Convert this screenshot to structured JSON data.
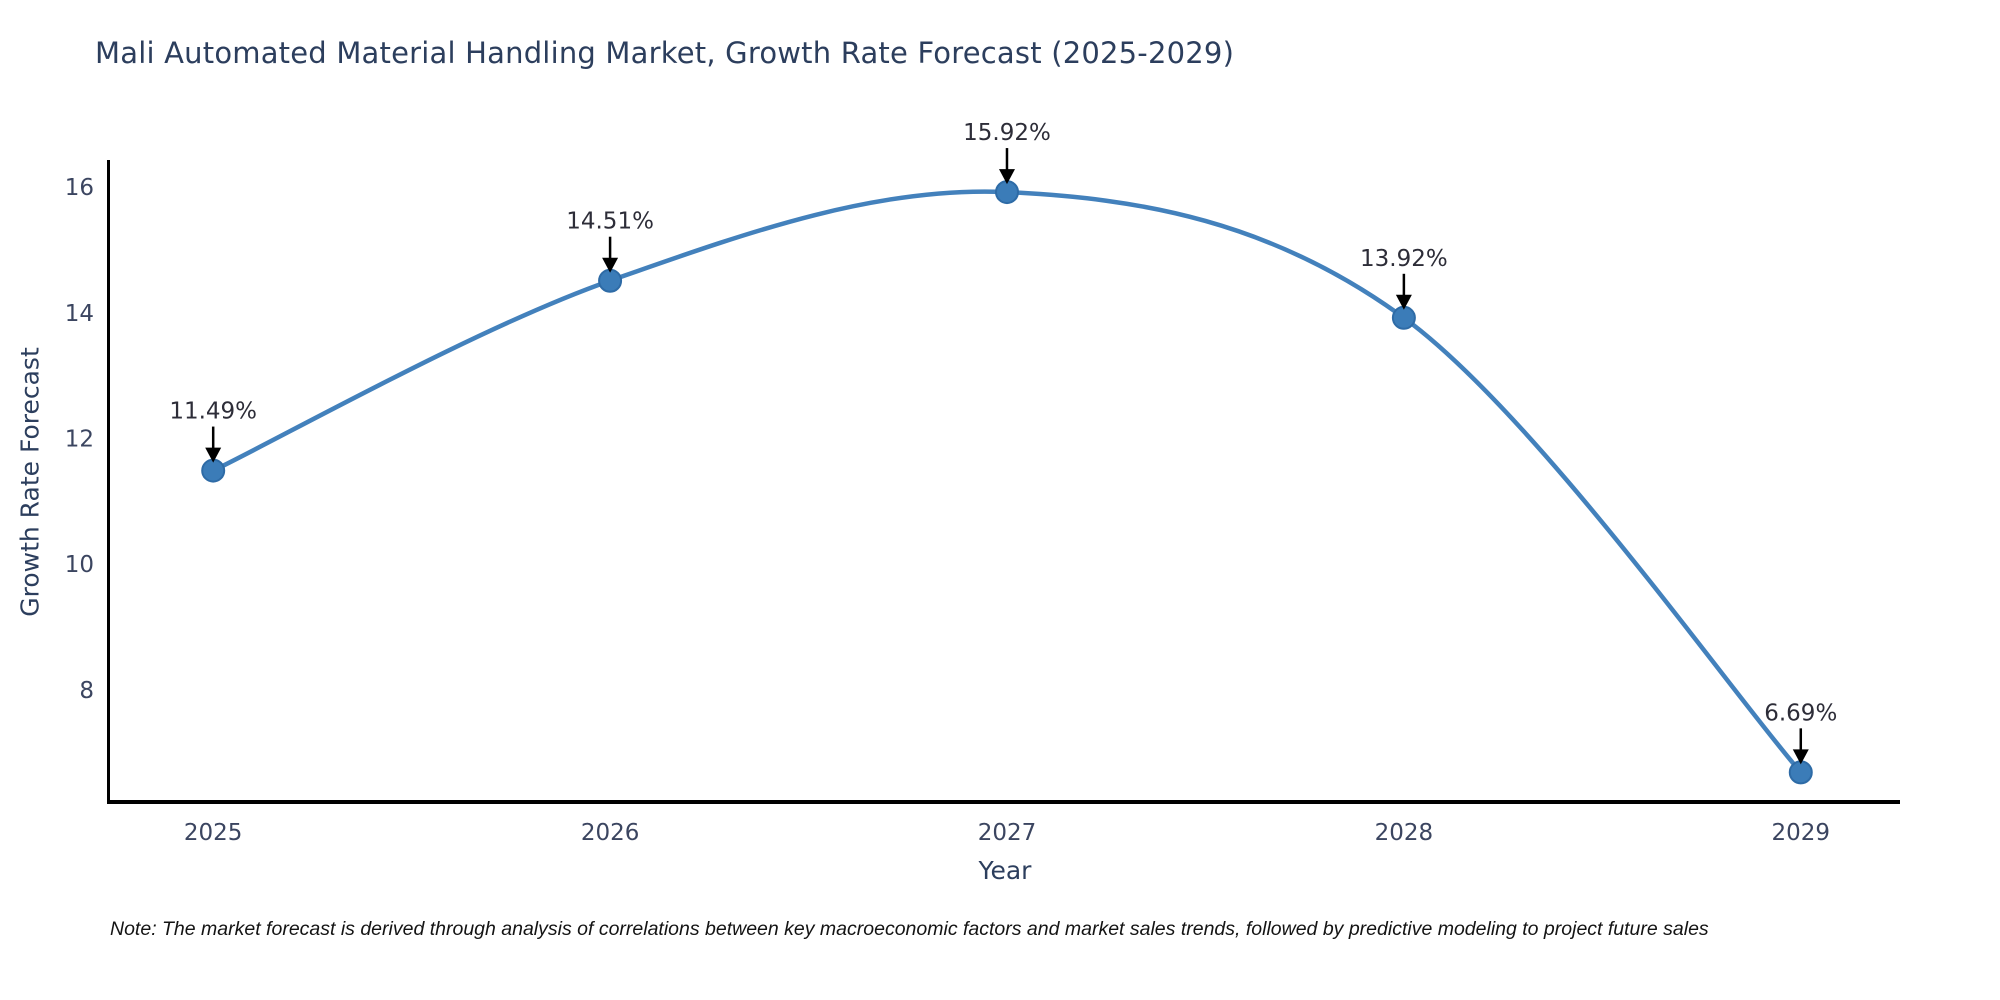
{
  "chart_data": {
    "type": "line",
    "title": "Mali Automated Material Handling Market, Growth Rate Forecast (2025-2029)",
    "xlabel": "Year",
    "ylabel": "Growth Rate Forecast",
    "x": [
      2025,
      2026,
      2027,
      2028,
      2029
    ],
    "values": [
      11.49,
      14.51,
      15.92,
      13.92,
      6.69
    ],
    "point_labels": [
      "11.49%",
      "14.51%",
      "15.92%",
      "13.92%",
      "6.69%"
    ],
    "x_tick_labels": [
      "2025",
      "2026",
      "2027",
      "2028",
      "2029"
    ],
    "y_ticks": [
      8,
      10,
      12,
      14,
      16
    ],
    "xlim": [
      2024.74,
      2029.25
    ],
    "ylim": [
      6.25,
      16.43
    ],
    "grid": false,
    "legend_position": "none",
    "smooth": true,
    "marker_shape": "circle",
    "annotation_arrow": "down-arrow",
    "colors": {
      "line": "#4381bc",
      "marker_fill": "#3b7cb8",
      "marker_edge": "#2e6ba6",
      "arrow": "#000000",
      "spine": "#000000",
      "title_text": "#2c3e5d",
      "axis_label_text": "#2c3e5d",
      "tick_text": "#3b4560",
      "annotation_text": "#2d2d38",
      "note_text": "#141414",
      "background": "#ffffff"
    }
  },
  "note": {
    "text": "Note: The market forecast is derived through analysis of correlations between key macroeconomic factors and market sales trends, followed by predictive modeling to project future sales"
  }
}
